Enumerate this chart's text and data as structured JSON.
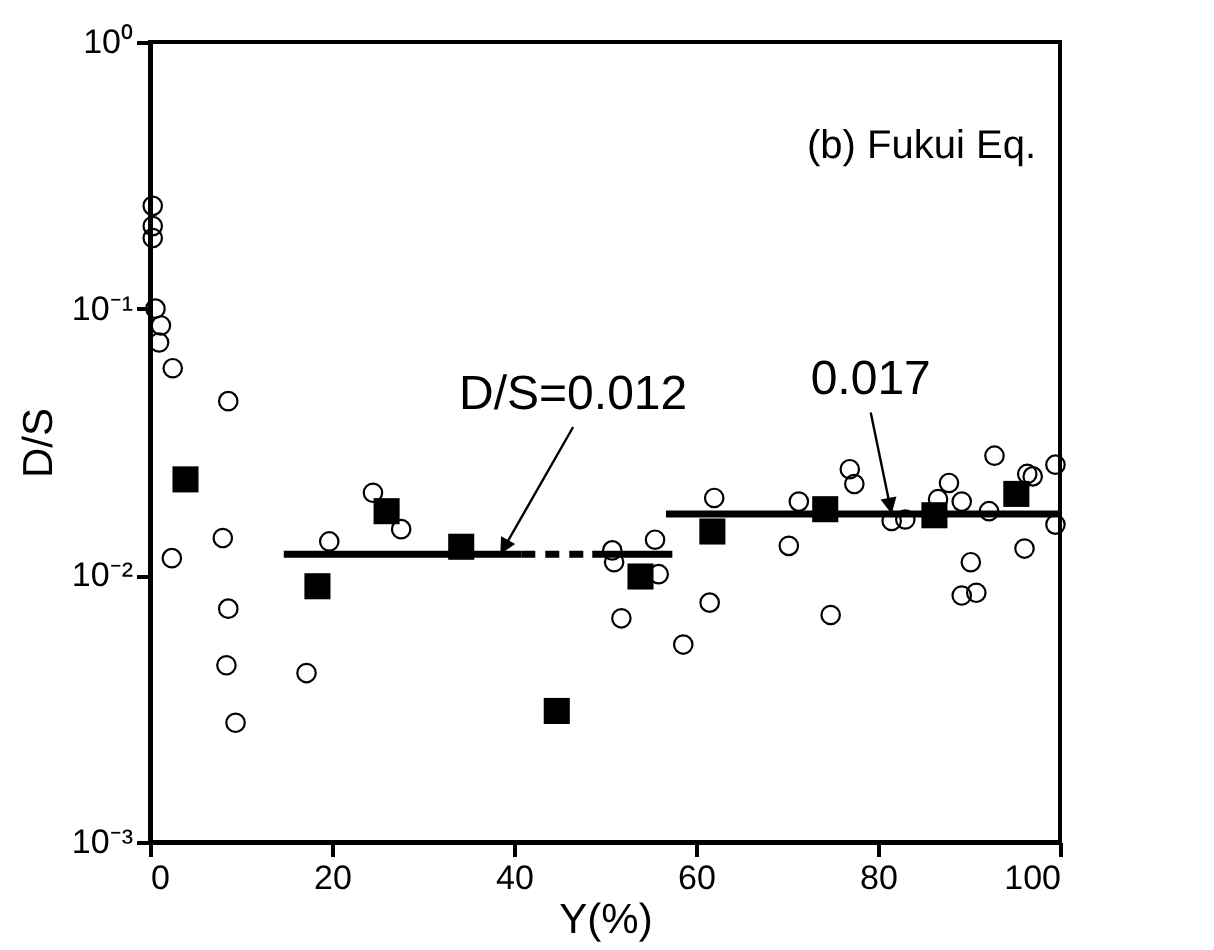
{
  "chart_data": {
    "type": "scatter",
    "xlabel": "Y(%)",
    "ylabel": "D/S",
    "log": "y",
    "grid": false,
    "xlim": [
      0,
      100
    ],
    "xticks": [
      0,
      20,
      40,
      60,
      80,
      100
    ],
    "ylim": [
      0.001,
      1
    ],
    "yticks": [
      {
        "value": 0.001,
        "label": "10⁻³"
      },
      {
        "value": 0.01,
        "label": "10⁻²"
      },
      {
        "value": 0.1,
        "label": "10⁻¹"
      },
      {
        "value": 1,
        "label": "10⁰"
      }
    ],
    "series": [
      {
        "marker": "circle",
        "color": "#000000",
        "x": [
          0.3,
          0.3,
          0.3,
          0.6,
          1.2,
          1.0,
          2.5,
          8.6,
          2.4,
          8.0,
          8.6,
          8.4,
          9.4,
          17.2,
          19.7,
          24.5,
          27.6,
          50.8,
          51.0,
          51.8,
          55.5,
          55.9,
          58.6,
          61.5,
          62.0,
          70.2,
          71.3,
          74.8,
          76.9,
          77.4,
          81.5,
          83.0,
          86.6,
          87.8,
          89.2,
          90.2,
          89.2,
          90.8,
          92.2,
          92.8,
          96.1,
          96.4,
          97.0,
          99.5,
          99.5
        ],
        "values": [
          0.243,
          0.204,
          0.184,
          0.1,
          0.0865,
          0.0747,
          0.0598,
          0.045,
          0.0116,
          0.0138,
          0.0075,
          0.0046,
          0.0028,
          0.0043,
          0.0134,
          0.0204,
          0.0149,
          0.0124,
          0.0112,
          0.0069,
          0.0136,
          0.0101,
          0.0055,
          0.0079,
          0.0195,
          0.0129,
          0.0189,
          0.0071,
          0.025,
          0.022,
          0.016,
          0.0162,
          0.0193,
          0.0222,
          0.0189,
          0.0112,
          0.0084,
          0.0086,
          0.0174,
          0.0281,
          0.0126,
          0.024,
          0.0235,
          0.026,
          0.0155
        ]
      },
      {
        "marker": "square",
        "color": "#000000",
        "x": [
          3.9,
          18.4,
          26.0,
          34.2,
          44.7,
          53.9,
          61.8,
          74.2,
          86.2,
          95.2
        ],
        "values": [
          0.0229,
          0.0091,
          0.0174,
          0.0128,
          0.0031,
          0.0099,
          0.0146,
          0.0177,
          0.0168,
          0.0202
        ]
      },
      {
        "type": "line",
        "line_style": "solid",
        "color": "#000000",
        "x": [
          14.7,
          40.8
        ],
        "values": [
          0.012,
          0.012
        ]
      },
      {
        "type": "line",
        "line_style": "dashed",
        "color": "#000000",
        "x": [
          40.8,
          48.6
        ],
        "values": [
          0.012,
          0.012
        ]
      },
      {
        "type": "line",
        "line_style": "solid",
        "color": "#000000",
        "x": [
          48.6,
          57.4
        ],
        "values": [
          0.012,
          0.012
        ]
      },
      {
        "type": "line",
        "line_style": "solid",
        "color": "#000000",
        "x": [
          56.7,
          100
        ],
        "values": [
          0.017,
          0.017
        ]
      }
    ],
    "annotations": [
      "(b) Fukui Eq.",
      {
        "text": "D/S=0.012",
        "x": 38.5,
        "y": 0.012
      },
      {
        "text": "0.017",
        "x": 81.5,
        "y": 0.017
      }
    ]
  }
}
